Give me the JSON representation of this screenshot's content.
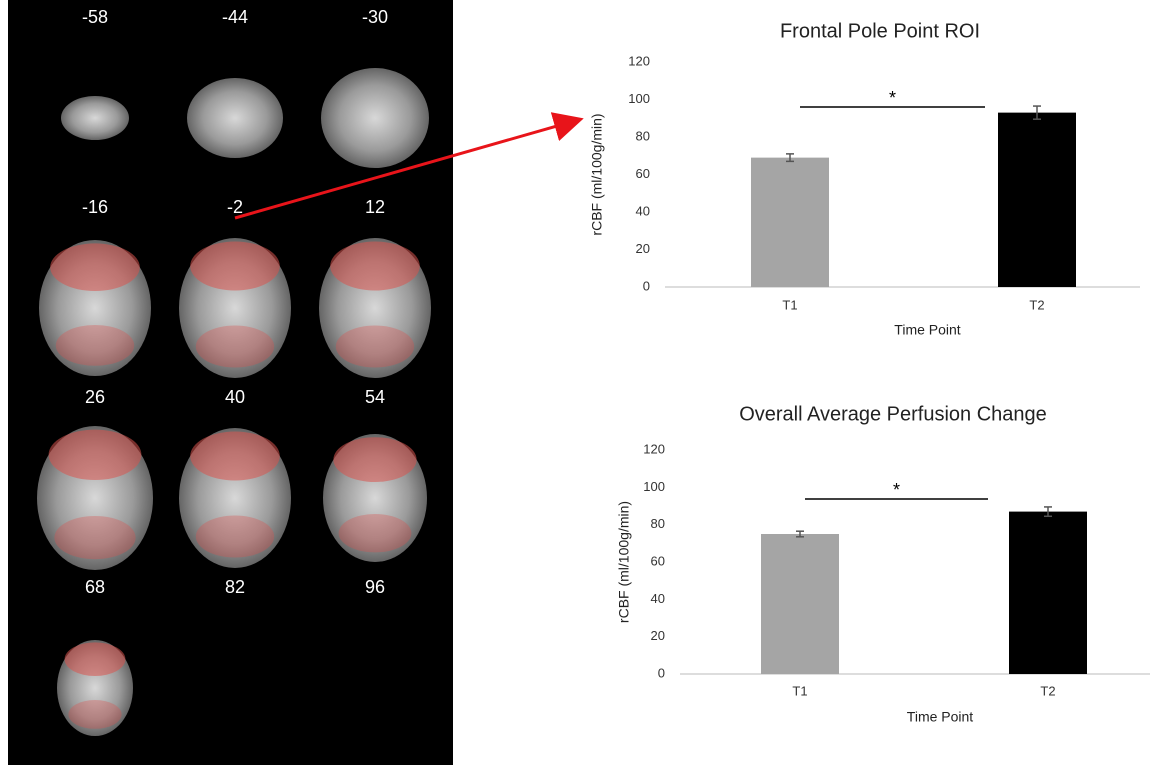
{
  "slice_labels": [
    -58,
    -44,
    -30,
    -16,
    -2,
    12,
    26,
    40,
    54,
    68,
    82,
    96
  ],
  "chart_data": [
    {
      "type": "bar",
      "title": "Frontal Pole Point ROI",
      "xlabel": "Time Point",
      "ylabel": "rCBF (ml/100g/min)",
      "categories": [
        "T1",
        "T2"
      ],
      "values": [
        69,
        93
      ],
      "errors": [
        2,
        3.5
      ],
      "colors": [
        "#a5a5a5",
        "#000000"
      ],
      "ylim": [
        0,
        120
      ],
      "yticks": [
        0,
        20,
        40,
        60,
        80,
        100,
        120
      ],
      "annotation": "*"
    },
    {
      "type": "bar",
      "title": "Overall Average Perfusion Change",
      "xlabel": "Time Point",
      "ylabel": "rCBF (ml/100g/min)",
      "categories": [
        "T1",
        "T2"
      ],
      "values": [
        75,
        87
      ],
      "errors": [
        1.5,
        2.5
      ],
      "colors": [
        "#a5a5a5",
        "#000000"
      ],
      "ylim": [
        0,
        120
      ],
      "yticks": [
        0,
        20,
        40,
        60,
        80,
        100,
        120
      ],
      "annotation": "*"
    }
  ]
}
